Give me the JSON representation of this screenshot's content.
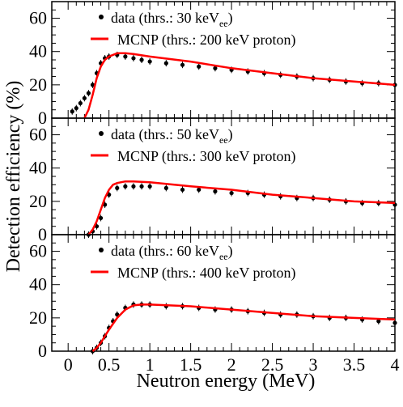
{
  "figure": {
    "xlabel": "Neutron energy (MeV)",
    "ylabel": "Detection efficiency (%)",
    "colors": {
      "data": "#000000",
      "mcnp": "#ff0000"
    }
  },
  "chart_data": [
    {
      "type": "scatter",
      "panel": "top",
      "xlim": [
        -0.2,
        4.0
      ],
      "ylim": [
        0,
        70
      ],
      "xticks": [
        "0",
        "0.5",
        "1",
        "1.5",
        "2",
        "2.5",
        "3",
        "3.5",
        "4"
      ],
      "yticks": [
        "0",
        "20",
        "40",
        "60"
      ],
      "legend": {
        "data_text": "data (thrs.: 30 keV",
        "data_sub": "ee",
        "data_close": ")",
        "mcnp_text": "MCNP (thrs.: 200 keV proton)",
        "placement": "top-left"
      },
      "series": [
        {
          "name": "data (thrs.: 30 keVee)",
          "x": [
            0.05,
            0.1,
            0.15,
            0.2,
            0.25,
            0.3,
            0.35,
            0.4,
            0.45,
            0.5,
            0.6,
            0.7,
            0.8,
            0.9,
            1.0,
            1.2,
            1.4,
            1.6,
            1.8,
            2.0,
            2.2,
            2.4,
            2.6,
            2.8,
            3.0,
            3.2,
            3.4,
            3.6,
            3.8,
            4.0
          ],
          "y": [
            4,
            6,
            9,
            12,
            15,
            20,
            27,
            33,
            36,
            37,
            38,
            37,
            36,
            35,
            34,
            33,
            32,
            31,
            30,
            29,
            28,
            27,
            26,
            25,
            24,
            23,
            22,
            21,
            21,
            20
          ]
        },
        {
          "name": "MCNP (thrs.: 200 keV proton)",
          "x": [
            0.2,
            0.25,
            0.3,
            0.35,
            0.4,
            0.45,
            0.5,
            0.6,
            0.7,
            0.8,
            1.0,
            1.5,
            2.0,
            2.5,
            3.0,
            3.5,
            4.0
          ],
          "y": [
            0,
            5,
            14,
            24,
            31,
            35,
            37,
            39,
            39,
            38.5,
            37,
            34,
            30,
            27,
            24,
            22,
            20
          ]
        }
      ]
    },
    {
      "type": "scatter",
      "panel": "middle",
      "xlim": [
        -0.2,
        4.0
      ],
      "ylim": [
        0,
        70
      ],
      "xticks": [
        "0",
        "0.5",
        "1",
        "1.5",
        "2",
        "2.5",
        "3",
        "3.5",
        "4"
      ],
      "yticks": [
        "0",
        "20",
        "40",
        "60"
      ],
      "legend": {
        "data_text": "data (thrs.: 50 keV",
        "data_sub": "ee",
        "data_close": ")",
        "mcnp_text": "MCNP (thrs.: 300 keV proton)",
        "placement": "top-left"
      },
      "series": [
        {
          "name": "data (thrs.: 50 keVee)",
          "x": [
            0.25,
            0.3,
            0.35,
            0.4,
            0.45,
            0.5,
            0.6,
            0.7,
            0.8,
            0.9,
            1.0,
            1.2,
            1.4,
            1.6,
            1.8,
            2.0,
            2.2,
            2.4,
            2.6,
            2.8,
            3.0,
            3.2,
            3.4,
            3.6,
            3.8,
            4.0
          ],
          "y": [
            0,
            2,
            5,
            10,
            18,
            24,
            28,
            29,
            29,
            29,
            29,
            28,
            27,
            27,
            26,
            25,
            25,
            24,
            23,
            22,
            22,
            21,
            20,
            19,
            19,
            18
          ]
        },
        {
          "name": "MCNP (thrs.: 300 keV proton)",
          "x": [
            0.25,
            0.3,
            0.35,
            0.4,
            0.45,
            0.5,
            0.55,
            0.6,
            0.7,
            0.8,
            1.0,
            1.5,
            2.0,
            2.5,
            3.0,
            3.5,
            4.0
          ],
          "y": [
            0,
            3,
            8,
            15,
            22,
            27,
            30,
            31,
            32,
            32,
            31.5,
            29,
            27,
            24,
            22,
            20,
            19
          ]
        }
      ]
    },
    {
      "type": "scatter",
      "panel": "bottom",
      "xlim": [
        -0.2,
        4.0
      ],
      "ylim": [
        0,
        70
      ],
      "xticks": [
        "0",
        "0.5",
        "1",
        "1.5",
        "2",
        "2.5",
        "3",
        "3.5",
        "4"
      ],
      "yticks": [
        "0",
        "20",
        "40",
        "60"
      ],
      "legend": {
        "data_text": "data (thrs.: 60 keV",
        "data_sub": "ee",
        "data_close": ")",
        "mcnp_text": "MCNP (thrs.: 400 keV proton)",
        "placement": "top-left"
      },
      "series": [
        {
          "name": "data (thrs.: 60 keVee)",
          "x": [
            0.3,
            0.35,
            0.4,
            0.45,
            0.5,
            0.55,
            0.6,
            0.7,
            0.8,
            0.9,
            1.0,
            1.2,
            1.4,
            1.6,
            1.8,
            2.0,
            2.2,
            2.4,
            2.6,
            2.8,
            3.0,
            3.2,
            3.4,
            3.6,
            3.8,
            4.0
          ],
          "y": [
            0,
            2,
            5,
            9,
            14,
            18,
            22,
            26,
            28,
            28,
            28,
            27,
            27,
            26,
            25,
            25,
            24,
            23,
            22,
            22,
            21,
            20,
            20,
            19,
            18,
            17
          ]
        },
        {
          "name": "MCNP (thrs.: 400 keV proton)",
          "x": [
            0.3,
            0.35,
            0.4,
            0.45,
            0.5,
            0.6,
            0.7,
            0.8,
            0.9,
            1.0,
            1.5,
            2.0,
            2.5,
            3.0,
            3.5,
            4.0
          ],
          "y": [
            0,
            2,
            5,
            9,
            13,
            20,
            25,
            27.5,
            28,
            28,
            27,
            25,
            23,
            21,
            20,
            19
          ]
        }
      ]
    }
  ]
}
